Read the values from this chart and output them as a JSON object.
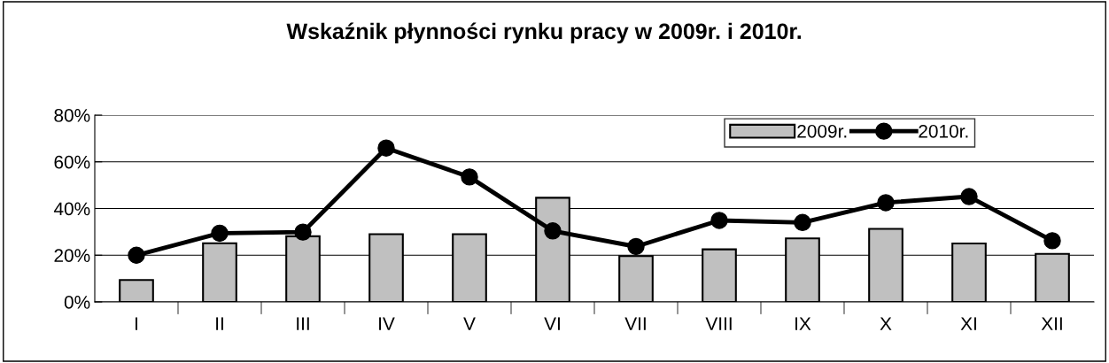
{
  "chart_data": {
    "type": "bar",
    "title": "Wskaźnik płynności rynku pracy w 2009r. i 2010r.",
    "categories": [
      "I",
      "II",
      "III",
      "IV",
      "V",
      "VI",
      "VII",
      "VIII",
      "IX",
      "X",
      "XI",
      "XII"
    ],
    "series": [
      {
        "name": "2009r.",
        "color": "#c0c0c0",
        "values": [
          9.4,
          25.1,
          28.1,
          29,
          29,
          44.6,
          19.6,
          22.5,
          27.2,
          31.3,
          25,
          20.6
        ]
      },
      {
        "name": "2010r.",
        "type": "line",
        "color": "#000000",
        "marker": "circle",
        "values": [
          20,
          29.4,
          29.9,
          65.9,
          53.5,
          30.4,
          23.7,
          34.9,
          34,
          42.5,
          45.1,
          26.2
        ]
      }
    ],
    "ylim": [
      0,
      80
    ],
    "yticks": [
      {
        "value": 0,
        "label": "0%"
      },
      {
        "value": 20,
        "label": "20%"
      },
      {
        "value": 40,
        "label": "40%"
      },
      {
        "value": 60,
        "label": "60%"
      },
      {
        "value": 80,
        "label": "80%"
      }
    ],
    "grid": "y",
    "legend": "top right"
  }
}
